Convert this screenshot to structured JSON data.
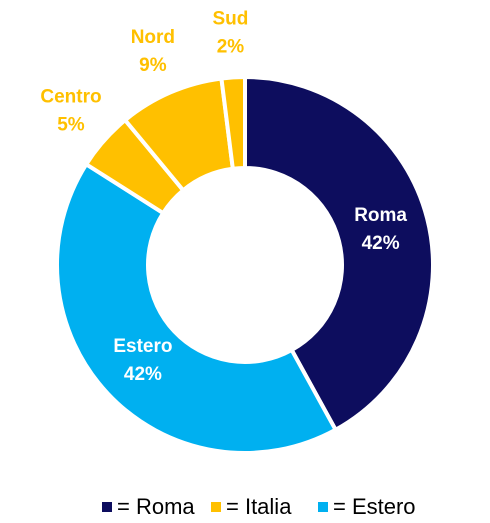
{
  "chart_data": {
    "type": "donut",
    "categories": [
      "Roma",
      "Estero",
      "Centro",
      "Nord",
      "Sud"
    ],
    "values": [
      42,
      42,
      5,
      9,
      2
    ],
    "value_labels": [
      "42%",
      "42%",
      "5%",
      "9%",
      "2%"
    ],
    "colors": [
      "#0d0d5e",
      "#00b0f0",
      "#ffc000",
      "#ffc000",
      "#ffc000"
    ],
    "legend": [
      {
        "name": "= Roma",
        "color": "#0d0d5e"
      },
      {
        "name": "= Italia",
        "color": "#ffc000"
      },
      {
        "name": "= Estero",
        "color": "#00b0f0"
      }
    ]
  }
}
